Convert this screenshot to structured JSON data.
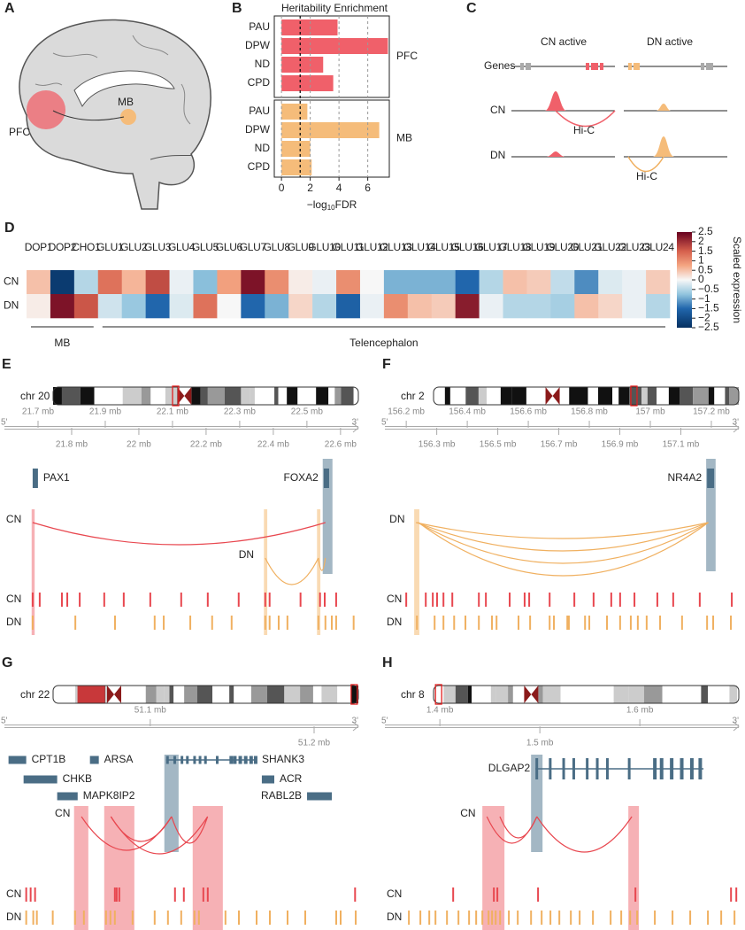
{
  "brain": {
    "label": "A",
    "regions": [
      "PFC",
      "MB"
    ]
  },
  "chart_data": [
    {
      "type": "bar",
      "label": "B",
      "title": "Heritability Enrichment",
      "orientation": "horizontal",
      "categories": [
        "PAU",
        "DPW",
        "ND",
        "CPD"
      ],
      "series": [
        {
          "name": "PFC",
          "color": "#f0606a",
          "values": [
            3.9,
            7.4,
            2.9,
            3.6
          ]
        },
        {
          "name": "MB",
          "color": "#f5bc7a",
          "values": [
            1.8,
            6.8,
            2.0,
            2.1
          ]
        }
      ],
      "xlim": [
        -0.5,
        7.5
      ],
      "xticks": [
        0,
        2,
        4,
        6
      ],
      "grid": true,
      "threshold": 1.3,
      "xlabel": [
        "−log",
        "10",
        "FDR"
      ]
    },
    {
      "type": "heatmap",
      "label": "D",
      "categories": [
        "DOP1",
        "DOP2",
        "CHO1",
        "GLU1",
        "GLU2",
        "GLU3",
        "GLU4",
        "GLU5",
        "GLU6",
        "GLU7",
        "GLU8",
        "GLU9",
        "GLU10",
        "GLU11",
        "GLU12",
        "GLU13",
        "GLU14",
        "GLU15",
        "GLU16",
        "GLU17",
        "GLU18",
        "GLU19",
        "GLU20",
        "GLU21",
        "GLU22",
        "GLU23",
        "GLU24"
      ],
      "series": [
        {
          "name": "CN",
          "values": [
            0.5,
            -2.3,
            -0.5,
            1.3,
            0.6,
            1.7,
            -0.1,
            -0.8,
            0.8,
            2.3,
            1.0,
            0.1,
            -0.1,
            1.0,
            0.0,
            -0.9,
            -0.9,
            -0.9,
            -1.5,
            -0.5,
            0.5,
            0.4,
            -0.4,
            -1.2,
            -0.2,
            -0.1,
            0.4
          ]
        },
        {
          "name": "DN",
          "values": [
            0.1,
            2.3,
            1.6,
            -0.3,
            -0.7,
            -1.5,
            -0.2,
            1.3,
            0.0,
            -1.5,
            -0.9,
            0.3,
            -0.5,
            -1.6,
            -0.1,
            1.0,
            0.5,
            0.4,
            2.2,
            -0.1,
            -0.5,
            -0.5,
            -0.6,
            0.5,
            0.3,
            -0.1,
            -0.5
          ]
        }
      ],
      "clim": [
        -2.5,
        2.5
      ],
      "cticks": [
        2.5,
        2,
        1.5,
        1,
        0.5,
        0,
        {
          "value": -0.5,
          "label": "−0.5"
        },
        {
          "value": -1,
          "label": "−1"
        },
        {
          "value": -1.5,
          "label": "−1.5"
        },
        {
          "value": -2,
          "label": "−2"
        },
        {
          "value": -2.5,
          "label": "−2.5"
        }
      ],
      "colorbar_label": "Scaled expression",
      "groups": [
        "MB",
        "Telencephalon"
      ]
    }
  ],
  "schematic": {
    "label": "C",
    "columns": [
      "CN active",
      "DN active"
    ],
    "rows": [
      "Genes",
      "CN",
      "DN"
    ],
    "hic": [
      "Hi-C",
      "Hi-C"
    ]
  },
  "tracks": [
    {
      "label": "E",
      "chromosome": "chr 20",
      "strand": [
        "5'",
        "3'"
      ],
      "xlim": [
        21.6,
        22.653
      ],
      "xticks": [
        {
          "value": 21.7,
          "label": "21.7 mb"
        },
        {
          "value": 21.8,
          "label": "21.8 mb"
        },
        {
          "value": 21.9,
          "label": "21.9 mb"
        },
        {
          "value": 22.0,
          "label": "22 mb"
        },
        {
          "value": 22.1,
          "label": "22.1 mb"
        },
        {
          "value": 22.2,
          "label": "22.2 mb"
        },
        {
          "value": 22.3,
          "label": "22.3 mb"
        },
        {
          "value": 22.4,
          "label": "22.4 mb"
        },
        {
          "value": 22.5,
          "label": "22.5 mb"
        },
        {
          "value": 22.6,
          "label": "22.6 mb"
        }
      ],
      "genes": [
        {
          "name": "PAX1",
          "start": 21.684,
          "end": 21.697
        },
        {
          "name": "FOXA2",
          "start": 22.55,
          "end": 22.566
        }
      ],
      "gene_highlights": [
        [
          22.547,
          22.576
        ]
      ],
      "highlights": [
        {
          "color": "#f4a3a8",
          "spans": [
            [
              21.681,
              21.69
            ]
          ]
        },
        {
          "color": "#f8d4a6",
          "spans": [
            [
              22.372,
              22.382
            ],
            [
              22.53,
              22.54
            ]
          ]
        }
      ],
      "arcs": [
        {
          "name": "CN",
          "color": "#e8474f",
          "links": [
            [
              21.684,
              22.555
            ]
          ]
        },
        {
          "name": "DN",
          "color": "#f0b060",
          "links": [
            [
              22.376,
              22.534
            ],
            [
              22.534,
              22.555
            ]
          ]
        }
      ],
      "peaks": [
        {
          "name": "CN",
          "color": "#e8474f",
          "positions": [
            21.684,
            21.705,
            21.771,
            21.787,
            21.824,
            21.897,
            21.955,
            22.034,
            22.126,
            22.205,
            22.297,
            22.376,
            22.389,
            22.481,
            22.539,
            22.553,
            22.587
          ]
        },
        {
          "name": "DN",
          "color": "#f0b060",
          "positions": [
            21.684,
            21.811,
            21.929,
            22.047,
            22.074,
            22.153,
            22.218,
            22.276,
            22.376,
            22.389,
            22.416,
            22.442,
            22.534,
            22.555,
            22.574,
            22.587,
            22.639
          ]
        }
      ]
    },
    {
      "label": "F",
      "chromosome": "chr 2",
      "strand": [
        "5'",
        "3'"
      ],
      "xlim": [
        156.13,
        157.29
      ],
      "xticks": [
        {
          "value": 156.2,
          "label": "156.2 mb"
        },
        {
          "value": 156.3,
          "label": "156.3 mb"
        },
        {
          "value": 156.4,
          "label": "156.4 mb"
        },
        {
          "value": 156.5,
          "label": "156.5 mb"
        },
        {
          "value": 156.6,
          "label": "156.6 mb"
        },
        {
          "value": 156.7,
          "label": "156.7 mb"
        },
        {
          "value": 156.8,
          "label": "156.8 mb"
        },
        {
          "value": 156.9,
          "label": "156.9 mb"
        },
        {
          "value": 157.0,
          "label": "157 mb"
        },
        {
          "value": 157.1,
          "label": "157.1 mb"
        },
        {
          "value": 157.2,
          "label": "157.2 mb"
        }
      ],
      "genes": [
        {
          "name": "NR4A2",
          "start": 157.186,
          "end": 157.209
        }
      ],
      "gene_highlights": [
        [
          157.183,
          157.214
        ]
      ],
      "highlights": [
        {
          "color": "#f8d4a6",
          "spans": [
            [
              156.226,
              156.243
            ]
          ]
        }
      ],
      "arcs": [
        {
          "name": "DN",
          "color": "#f0b060",
          "links": [
            [
              156.232,
              157.19
            ],
            [
              156.235,
              157.19
            ],
            [
              156.238,
              157.19
            ],
            [
              156.24,
              157.19
            ]
          ]
        }
      ],
      "peaks": [
        {
          "name": "CN",
          "color": "#e8474f",
          "positions": [
            156.2,
            156.264,
            156.287,
            156.301,
            156.322,
            156.351,
            156.438,
            156.461,
            156.539,
            156.588,
            156.603,
            156.67,
            156.751,
            156.814,
            156.872,
            156.901,
            156.948,
            157.023,
            157.075,
            157.162,
            157.267
          ]
        },
        {
          "name": "DN",
          "color": "#f0b060",
          "positions": [
            156.235,
            156.293,
            156.322,
            156.357,
            156.394,
            156.438,
            156.481,
            156.496,
            156.568,
            156.606,
            156.67,
            156.684,
            156.728,
            156.733,
            156.786,
            156.8,
            156.858,
            156.901,
            156.936,
            156.959,
            156.988,
            157.032,
            157.104,
            157.186,
            157.206,
            157.264
          ]
        }
      ]
    },
    {
      "label": "G",
      "chromosome": "chr 22",
      "strand": [
        "5'",
        "3'"
      ],
      "xlim": [
        51.011,
        51.227
      ],
      "xticks": [
        {
          "value": 51.1,
          "label": "51.1 mb"
        },
        {
          "value": 51.2,
          "label": "51.2 mb"
        }
      ],
      "genes": [
        {
          "name": "CPT1B",
          "start": 51.0135,
          "end": 51.0243
        },
        {
          "name": "CHKB",
          "start": 51.0227,
          "end": 51.0432
        },
        {
          "name": "MAPK8IP2",
          "start": 51.0432,
          "end": 51.0557
        },
        {
          "name": "ARSA",
          "start": 51.0632,
          "end": 51.0686
        },
        {
          "name": "SHANK3",
          "start": 51.1097,
          "end": 51.1649
        },
        {
          "name": "ACR",
          "start": 51.1681,
          "end": 51.1757
        },
        {
          "name": "RABL2B",
          "start": 51.1957,
          "end": 51.2108
        }
      ],
      "gene_highlights": [
        [
          51.1086,
          51.1173
        ]
      ],
      "highlights": [
        {
          "color": "#f4a3a8",
          "spans": [
            [
              51.0535,
              51.0622
            ],
            [
              51.0719,
              51.0903
            ],
            [
              51.1259,
              51.1443
            ]
          ]
        }
      ],
      "arcs": [
        {
          "name": "CN",
          "color": "#e8474f",
          "links": [
            [
              51.058,
              51.113
            ],
            [
              51.076,
              51.113
            ],
            [
              51.113,
              51.135
            ],
            [
              51.076,
              51.135
            ]
          ]
        }
      ],
      "peaks": [
        {
          "name": "CN",
          "color": "#e8474f",
          "positions": [
            51.0243,
            51.027,
            51.0297,
            51.0784,
            51.0795,
            51.0811,
            51.1151,
            51.1205,
            51.1324,
            51.1351,
            51.225
          ]
        },
        {
          "name": "DN",
          "color": "#f0b060",
          "positions": [
            51.0243,
            51.0286,
            51.0308,
            51.0405,
            51.0541,
            51.0595,
            51.073,
            51.0757,
            51.0784,
            51.0892,
            51.1027,
            51.1108,
            51.1189,
            51.127,
            51.1297,
            51.1459,
            51.1541,
            51.1649,
            51.173,
            51.1838,
            51.1946,
            51.2135,
            51.2162,
            51.2254
          ]
        }
      ]
    },
    {
      "label": "H",
      "chromosome": "chr 8",
      "strand": [
        "5'",
        "3'"
      ],
      "xlim": [
        1.345,
        1.699
      ],
      "xticks": [
        {
          "value": 1.4,
          "label": "1.4 mb"
        },
        {
          "value": 1.5,
          "label": "1.5 mb"
        },
        {
          "value": 1.6,
          "label": "1.6 mb"
        }
      ],
      "genes": [
        {
          "name": "DLGAP2",
          "start": 1.4956,
          "end": 1.6637
        }
      ],
      "gene_highlights": [
        [
          1.4912,
          1.5027
        ]
      ],
      "highlights": [
        {
          "color": "#f4a3a8",
          "spans": [
            [
              1.4425,
              1.4646
            ],
            [
              1.5885,
              1.5991
            ]
          ]
        }
      ],
      "arcs": [
        {
          "name": "CN",
          "color": "#e8474f",
          "links": [
            [
              1.447,
              1.497
            ],
            [
              1.46,
              1.497
            ],
            [
              1.497,
              1.592
            ]
          ]
        }
      ],
      "peaks": [
        {
          "name": "CN",
          "color": "#e8474f",
          "positions": [
            1.4133,
            1.454,
            1.4575,
            1.4982,
            1.5956,
            1.6912,
            1.6965
          ]
        },
        {
          "name": "DN",
          "color": "#f0b060",
          "positions": [
            1.369,
            1.3805,
            1.3894,
            1.3956,
            1.4071,
            1.4186,
            1.4292,
            1.4363,
            1.4425,
            1.4487,
            1.4522,
            1.4558,
            1.4602,
            1.469,
            1.4779,
            1.4912,
            1.5018,
            1.5106,
            1.5195,
            1.531,
            1.5398,
            1.5531,
            1.5708,
            1.5814,
            1.5903,
            1.5973,
            1.615,
            1.6327,
            1.6504,
            1.6681,
            1.6814,
            1.6947
          ]
        }
      ]
    }
  ]
}
